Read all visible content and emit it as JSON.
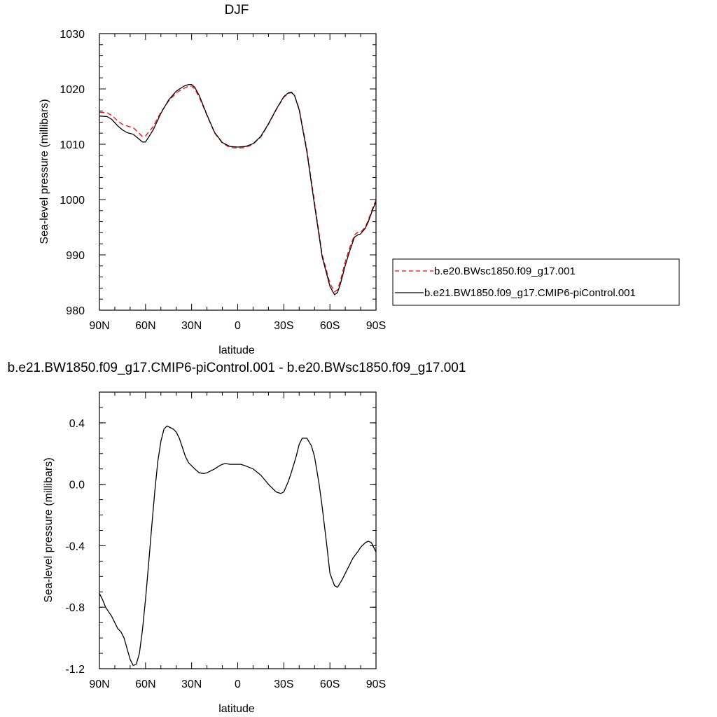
{
  "chart_data": [
    {
      "type": "line",
      "title": "DJF",
      "xlabel": "latitude",
      "ylabel": "Sea-level pressure (millibars)",
      "x_ticks": [
        90,
        60,
        30,
        0,
        -30,
        -60,
        -90
      ],
      "x_tick_labels": [
        "90N",
        "60N",
        "30N",
        "0",
        "30S",
        "60S",
        "90S"
      ],
      "xlim": [
        90,
        -90
      ],
      "ylim": [
        980,
        1030
      ],
      "y_ticks": [
        980,
        990,
        1000,
        1010,
        1020,
        1030
      ],
      "y_tick_labels": [
        "980",
        "990",
        "1000",
        "1010",
        "1020",
        "1030"
      ],
      "grid": false,
      "legend_position": "right",
      "series": [
        {
          "name": "b.e20.BWsc1850.f09_g17.001",
          "color": "#ff0000",
          "dash": "dashed",
          "x": [
            90,
            85,
            82,
            78,
            75,
            72,
            68,
            65,
            62,
            60,
            55,
            50,
            45,
            40,
            35,
            32,
            30,
            28,
            25,
            20,
            15,
            10,
            5,
            0,
            -5,
            -10,
            -15,
            -20,
            -25,
            -30,
            -33,
            -35,
            -37,
            -40,
            -45,
            -50,
            -55,
            -60,
            -63,
            -65,
            -67,
            -70,
            -73,
            -76,
            -78,
            -80,
            -83,
            -85,
            -88,
            -90
          ],
          "y": [
            1015.8,
            1015.7,
            1015.2,
            1014.2,
            1013.6,
            1013.3,
            1013.0,
            1012.2,
            1011.4,
            1011.5,
            1013.2,
            1015.8,
            1017.8,
            1019.3,
            1020.1,
            1020.5,
            1020.5,
            1020.0,
            1018.5,
            1015.2,
            1012.0,
            1010.2,
            1009.4,
            1009.3,
            1009.4,
            1010.0,
            1011.3,
            1013.6,
            1016.2,
            1018.5,
            1019.2,
            1019.3,
            1018.8,
            1016.4,
            1009.0,
            999.5,
            990.0,
            984.9,
            983.3,
            983.7,
            985.5,
            988.8,
            991.4,
            993.6,
            994.1,
            994.1,
            995.0,
            996.3,
            998.6,
            999.9
          ]
        },
        {
          "name": "b.e21.BW1850.f09_g17.CMIP6-piControl.001",
          "color": "#000000",
          "dash": "solid",
          "x": [
            90,
            85,
            82,
            78,
            75,
            72,
            68,
            65,
            62,
            60,
            55,
            50,
            45,
            40,
            35,
            32,
            30,
            28,
            25,
            20,
            15,
            10,
            5,
            0,
            -5,
            -10,
            -15,
            -20,
            -25,
            -30,
            -33,
            -35,
            -37,
            -40,
            -45,
            -50,
            -55,
            -60,
            -63,
            -65,
            -67,
            -70,
            -73,
            -76,
            -78,
            -80,
            -83,
            -85,
            -88,
            -90
          ],
          "y": [
            1015.1,
            1015.0,
            1014.5,
            1013.3,
            1012.6,
            1012.1,
            1011.8,
            1011.1,
            1010.4,
            1010.4,
            1012.6,
            1015.6,
            1018.0,
            1019.6,
            1020.5,
            1020.8,
            1020.8,
            1020.3,
            1018.8,
            1015.3,
            1012.1,
            1010.3,
            1009.6,
            1009.5,
            1009.6,
            1010.1,
            1011.4,
            1013.7,
            1016.3,
            1018.6,
            1019.3,
            1019.4,
            1018.8,
            1016.2,
            1008.6,
            999.0,
            989.6,
            984.3,
            982.8,
            983.2,
            984.9,
            988.1,
            990.8,
            993.2,
            993.6,
            993.8,
            994.8,
            996.0,
            998.3,
            999.6
          ]
        }
      ]
    },
    {
      "type": "line",
      "title": "b.e21.BW1850.f09_g17.CMIP6-piControl.001 - b.e20.BWsc1850.f09_g17.001",
      "xlabel": "latitude",
      "ylabel": "Sea-level pressure (millibars)",
      "x_ticks": [
        90,
        60,
        30,
        0,
        -30,
        -60,
        -90
      ],
      "x_tick_labels": [
        "90N",
        "60N",
        "30N",
        "0",
        "30S",
        "60S",
        "90S"
      ],
      "xlim": [
        90,
        -90
      ],
      "ylim": [
        -1.2,
        0.6
      ],
      "y_ticks": [
        -1.2,
        -0.8,
        -0.4,
        0.0,
        0.4
      ],
      "y_tick_labels": [
        "-1.2",
        "-0.8",
        "-0.4",
        "0.0",
        "0.4"
      ],
      "grid": false,
      "series": [
        {
          "color": "#000000",
          "dash": "solid",
          "x": [
            90,
            88,
            86,
            84,
            82,
            80,
            78,
            76,
            74,
            72,
            70,
            68,
            66,
            64,
            62,
            60,
            58,
            56,
            54,
            52,
            50,
            48,
            46,
            44,
            42,
            40,
            38,
            36,
            34,
            32,
            30,
            28,
            25,
            22,
            20,
            18,
            15,
            12,
            10,
            8,
            5,
            2,
            0,
            -2,
            -5,
            -10,
            -15,
            -20,
            -25,
            -28,
            -30,
            -33,
            -35,
            -38,
            -40,
            -42,
            -45,
            -48,
            -50,
            -53,
            -55,
            -58,
            -60,
            -63,
            -65,
            -68,
            -70,
            -72,
            -73,
            -75,
            -78,
            -80,
            -83,
            -85,
            -87,
            -89,
            -90
          ],
          "y": [
            -0.71,
            -0.75,
            -0.8,
            -0.83,
            -0.86,
            -0.9,
            -0.94,
            -0.96,
            -1.0,
            -1.07,
            -1.14,
            -1.18,
            -1.17,
            -1.1,
            -0.95,
            -0.75,
            -0.52,
            -0.28,
            -0.05,
            0.15,
            0.28,
            0.36,
            0.38,
            0.37,
            0.36,
            0.34,
            0.3,
            0.24,
            0.18,
            0.14,
            0.12,
            0.1,
            0.075,
            0.07,
            0.075,
            0.085,
            0.1,
            0.12,
            0.13,
            0.135,
            0.13,
            0.13,
            0.13,
            0.13,
            0.12,
            0.1,
            0.06,
            0.0,
            -0.05,
            -0.06,
            -0.05,
            0.02,
            0.08,
            0.18,
            0.26,
            0.3,
            0.3,
            0.25,
            0.18,
            0.0,
            -0.15,
            -0.4,
            -0.58,
            -0.66,
            -0.67,
            -0.62,
            -0.58,
            -0.54,
            -0.52,
            -0.48,
            -0.44,
            -0.41,
            -0.38,
            -0.37,
            -0.38,
            -0.42,
            -0.44
          ]
        }
      ]
    }
  ]
}
